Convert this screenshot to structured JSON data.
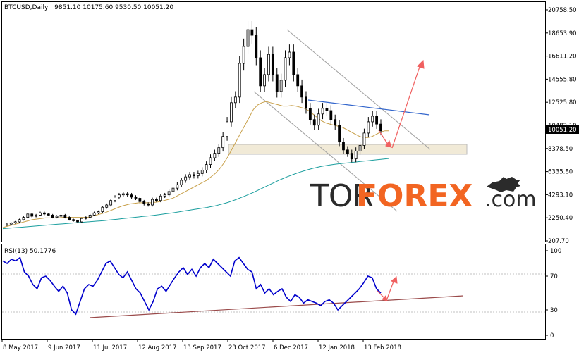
{
  "chart_data": [
    {
      "type": "candlestick",
      "symbol": "BTCUSD,Daily",
      "ohlc": "9851.10 10175.60 9530.50 10051.20",
      "last_price_label": "10051.20",
      "y_ticks": [
        "20758.50",
        "18653.90",
        "16611.20",
        "14555.80",
        "12525.80",
        "10482.10",
        "8378.50",
        "6335.80",
        "4293.10",
        "2250.40",
        "207.70"
      ],
      "y_range": [
        207.7,
        20758.5
      ],
      "x_ticks": [
        "8 May 2017",
        "9 Jun 2017",
        "11 Jul 2017",
        "12 Aug 2017",
        "13 Sep 2017",
        "23 Oct 2017",
        "6 Dec 2017",
        "12 Jan 2018",
        "13 Feb 2018"
      ],
      "grid": false,
      "series": [
        {
          "role": "price",
          "color": "#000000",
          "values": [
            1600,
            1700,
            1800,
            1900,
            2100,
            2300,
            2600,
            2400,
            2500,
            2700,
            2600,
            2500,
            2300,
            2400,
            2500,
            2300,
            2100,
            2000,
            1900,
            2200,
            2300,
            2500,
            2700,
            2800,
            3200,
            3400,
            3800,
            4100,
            4300,
            4400,
            4300,
            4100,
            4000,
            3700,
            3500,
            3400,
            3900,
            3800,
            4200,
            4300,
            4600,
            4900,
            5200,
            5600,
            5900,
            6100,
            6000,
            6200,
            6500,
            7000,
            7600,
            8000,
            8500,
            9500,
            10800,
            12500,
            13000,
            16000,
            17500,
            19000,
            18500,
            16500,
            14000,
            15000,
            16800,
            15000,
            13500,
            14500,
            16500,
            17000,
            15000,
            14000,
            13000,
            12000,
            11000,
            10500,
            11500,
            12000,
            11800,
            11000,
            10500,
            9000,
            8300,
            8000,
            7500,
            8200,
            8700,
            9800,
            10800,
            11300,
            10600,
            10000
          ]
        },
        {
          "role": "slow-ma",
          "color": "#c8a04a",
          "values": [
            1400,
            1500,
            1600,
            1700,
            1800,
            1900,
            2000,
            2100,
            2150,
            2200,
            2250,
            2250,
            2250,
            2250,
            2300,
            2300,
            2300,
            2300,
            2300,
            2300,
            2300,
            2400,
            2500,
            2600,
            2700,
            2850,
            3000,
            3150,
            3300,
            3400,
            3500,
            3550,
            3600,
            3600,
            3600,
            3600,
            3650,
            3700,
            3800,
            3900,
            4000,
            4200,
            4400,
            4600,
            4800,
            5000,
            5200,
            5400,
            5600,
            5900,
            6200,
            6600,
            7100,
            7700,
            8400,
            9100,
            9800,
            10500,
            11200,
            11900,
            12300,
            12500,
            12600,
            12500,
            12400,
            12300,
            12200,
            12200,
            12250,
            12200,
            12100,
            12000,
            11800,
            11500,
            11200,
            10900,
            10700,
            10600,
            10500,
            10400,
            10300,
            10100,
            9900,
            9700,
            9500,
            9400,
            9400,
            9500,
            9700,
            9900,
            10000,
            10000
          ]
        },
        {
          "role": "fast-ma",
          "color": "#1a9e9e",
          "values": [
            1300,
            1330,
            1360,
            1390,
            1420,
            1450,
            1480,
            1510,
            1540,
            1570,
            1600,
            1630,
            1660,
            1690,
            1720,
            1750,
            1780,
            1810,
            1840,
            1870,
            1900,
            1930,
            1960,
            1990,
            2020,
            2060,
            2100,
            2140,
            2180,
            2220,
            2260,
            2300,
            2340,
            2380,
            2420,
            2460,
            2500,
            2550,
            2600,
            2650,
            2700,
            2760,
            2820,
            2880,
            2940,
            3000,
            3060,
            3120,
            3180,
            3250,
            3330,
            3420,
            3520,
            3630,
            3760,
            3900,
            4050,
            4200,
            4360,
            4520,
            4700,
            4880,
            5060,
            5240,
            5420,
            5600,
            5760,
            5920,
            6060,
            6200,
            6330,
            6450,
            6560,
            6660,
            6750,
            6830,
            6900,
            6960,
            7010,
            7060,
            7100,
            7140,
            7180,
            7220,
            7260,
            7300,
            7340,
            7380,
            7420,
            7460,
            7500,
            7540
          ]
        }
      ]
    },
    {
      "type": "line",
      "title": "RSI(13) 50.1776",
      "y_ticks": [
        "100",
        "70",
        "30",
        "0"
      ],
      "y_range": [
        0,
        100
      ],
      "series": [
        {
          "name": "RSI(13)",
          "color": "#0000cc",
          "values": [
            88,
            85,
            90,
            88,
            92,
            75,
            70,
            60,
            55,
            68,
            70,
            65,
            58,
            52,
            58,
            50,
            30,
            25,
            40,
            55,
            60,
            58,
            65,
            75,
            85,
            88,
            80,
            72,
            68,
            75,
            65,
            55,
            50,
            40,
            30,
            40,
            55,
            58,
            52,
            60,
            68,
            75,
            80,
            72,
            78,
            70,
            80,
            85,
            80,
            90,
            85,
            80,
            75,
            70,
            88,
            92,
            85,
            78,
            75,
            55,
            60,
            50,
            55,
            48,
            52,
            55,
            45,
            40,
            48,
            45,
            38,
            42,
            40,
            38,
            35,
            40,
            42,
            38,
            30,
            35,
            40,
            45,
            50,
            55,
            62,
            70,
            68,
            55,
            50
          ]
        }
      ]
    }
  ],
  "watermark": {
    "part1": "TOR",
    "part2": "FOREX",
    "part3": ".com"
  }
}
